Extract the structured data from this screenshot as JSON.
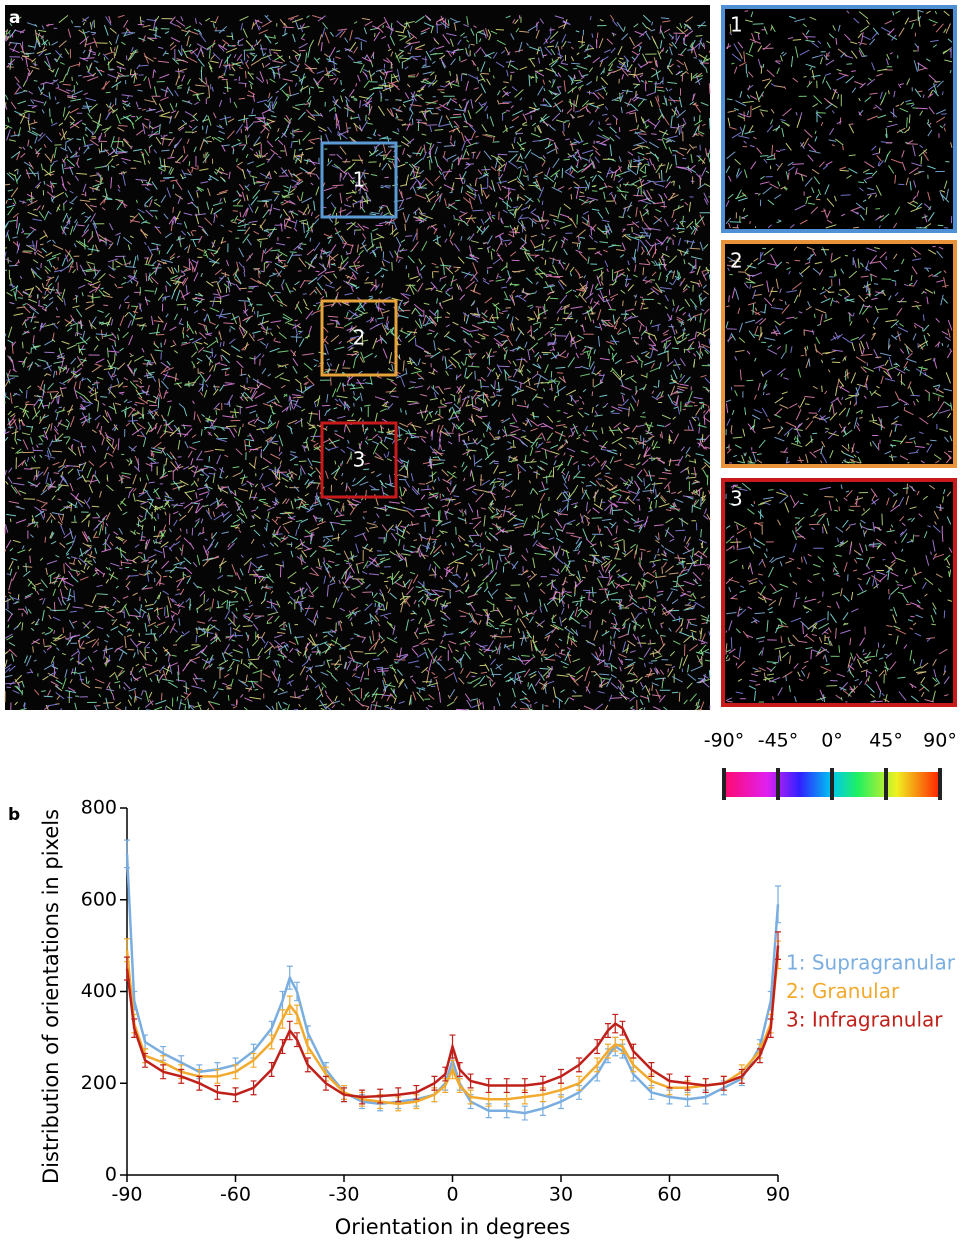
{
  "panel_labels": [
    "a",
    "b"
  ],
  "image": {
    "regions": [
      "1",
      "2",
      "3"
    ],
    "colorbar": {
      "ticks": [
        "-90°",
        "-45°",
        "0°",
        "45°",
        "90°"
      ]
    }
  },
  "chart_data": {
    "type": "line",
    "x_label": "Orientation in degrees",
    "y_label": "Distribution of orientations in pixels",
    "xlim": [
      -90,
      90
    ],
    "xticks": [
      -90,
      -60,
      -30,
      0,
      30,
      60,
      90
    ],
    "ylim": [
      0,
      800
    ],
    "yticks": [
      0,
      200,
      400,
      600,
      800
    ],
    "x": [
      -90,
      -88,
      -85,
      -80,
      -75,
      -70,
      -65,
      -60,
      -55,
      -50,
      -47,
      -45,
      -43,
      -40,
      -35,
      -30,
      -25,
      -20,
      -15,
      -10,
      -5,
      -2,
      0,
      2,
      5,
      10,
      15,
      20,
      25,
      30,
      35,
      40,
      43,
      45,
      47,
      50,
      55,
      60,
      65,
      70,
      75,
      80,
      85,
      88,
      90
    ],
    "series": [
      {
        "name": "1: Supragranular",
        "color": "#7aaee0",
        "values": [
          700,
          380,
          290,
          265,
          245,
          225,
          230,
          240,
          270,
          320,
          380,
          430,
          400,
          310,
          230,
          180,
          160,
          155,
          160,
          165,
          175,
          200,
          250,
          200,
          160,
          140,
          140,
          135,
          145,
          160,
          180,
          220,
          260,
          280,
          270,
          220,
          180,
          170,
          165,
          170,
          190,
          210,
          280,
          380,
          590
        ],
        "errors": [
          30,
          20,
          15,
          15,
          15,
          15,
          15,
          15,
          15,
          15,
          20,
          25,
          20,
          15,
          15,
          15,
          15,
          15,
          15,
          15,
          15,
          15,
          20,
          15,
          15,
          15,
          15,
          15,
          15,
          15,
          15,
          15,
          15,
          20,
          15,
          15,
          15,
          15,
          15,
          15,
          15,
          15,
          15,
          20,
          40
        ]
      },
      {
        "name": "2: Granular",
        "color": "#f2aa2e",
        "values": [
          490,
          330,
          260,
          245,
          225,
          215,
          215,
          225,
          250,
          290,
          340,
          370,
          350,
          280,
          220,
          180,
          165,
          160,
          155,
          160,
          175,
          195,
          230,
          195,
          170,
          165,
          165,
          170,
          175,
          185,
          200,
          240,
          270,
          285,
          280,
          240,
          205,
          190,
          190,
          195,
          200,
          225,
          270,
          330,
          480
        ],
        "errors": [
          25,
          20,
          15,
          15,
          15,
          15,
          15,
          15,
          15,
          15,
          20,
          20,
          20,
          15,
          15,
          15,
          15,
          15,
          15,
          15,
          15,
          15,
          20,
          15,
          15,
          15,
          15,
          15,
          15,
          15,
          15,
          15,
          15,
          15,
          15,
          15,
          15,
          15,
          15,
          15,
          15,
          15,
          15,
          20,
          30
        ]
      },
      {
        "name": "3: Infragranular",
        "color": "#c0201a",
        "values": [
          450,
          320,
          250,
          225,
          215,
          200,
          180,
          175,
          190,
          230,
          280,
          315,
          295,
          240,
          200,
          175,
          170,
          172,
          175,
          180,
          200,
          220,
          280,
          230,
          205,
          195,
          195,
          195,
          200,
          215,
          240,
          280,
          315,
          330,
          320,
          270,
          230,
          205,
          200,
          195,
          200,
          215,
          260,
          320,
          500
        ],
        "errors": [
          25,
          20,
          15,
          15,
          15,
          15,
          15,
          15,
          15,
          15,
          15,
          20,
          15,
          15,
          15,
          15,
          15,
          15,
          15,
          15,
          15,
          15,
          25,
          15,
          15,
          15,
          15,
          15,
          15,
          15,
          15,
          15,
          15,
          20,
          15,
          15,
          15,
          15,
          15,
          15,
          15,
          15,
          15,
          20,
          30
        ]
      }
    ]
  }
}
